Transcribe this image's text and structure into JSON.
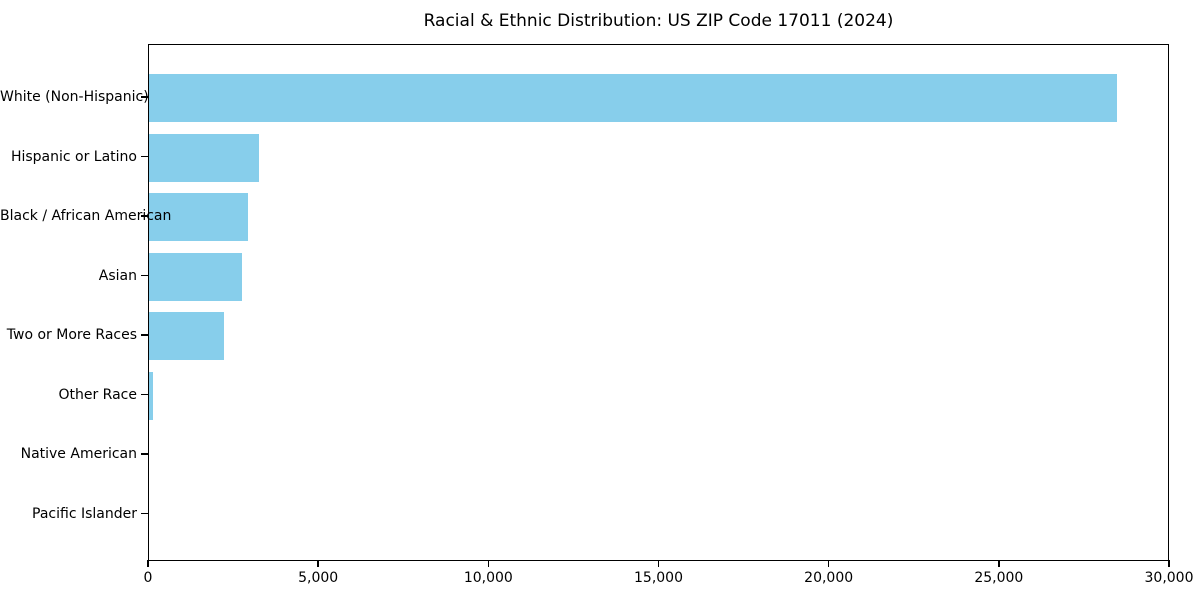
{
  "chart_data": {
    "type": "bar",
    "orientation": "horizontal",
    "title": "Racial & Ethnic Distribution: US ZIP Code 17011 (2024)",
    "xlabel": "",
    "ylabel": "",
    "categories": [
      "White (Non-Hispanic)",
      "Hispanic or Latino",
      "Black / African American",
      "Asian",
      "Two or More Races",
      "Other Race",
      "Native American",
      "Pacific Islander"
    ],
    "values": [
      28500,
      3250,
      2900,
      2725,
      2200,
      130,
      0,
      0
    ],
    "xlim": [
      0,
      30000
    ],
    "x_ticks": [
      {
        "value": 0,
        "label": "0"
      },
      {
        "value": 5000,
        "label": "5,000"
      },
      {
        "value": 10000,
        "label": "10,000"
      },
      {
        "value": 15000,
        "label": "15,000"
      },
      {
        "value": 20000,
        "label": "20,000"
      },
      {
        "value": 25000,
        "label": "25,000"
      },
      {
        "value": 30000,
        "label": "30,000"
      }
    ],
    "bar_color": "#87CEEB",
    "axis_color": "#000000",
    "background_color": "#ffffff",
    "grid": false,
    "legend": null
  }
}
